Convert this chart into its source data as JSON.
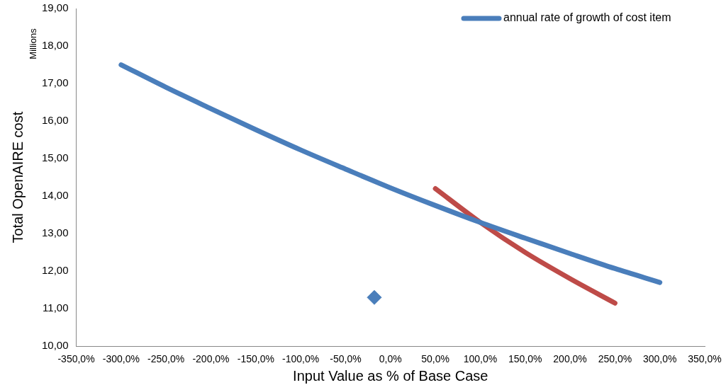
{
  "chart_data": {
    "type": "line",
    "xlabel": "Input Value as % of Base Case",
    "ylabel": "Total OpenAIRE cost",
    "annotations": [
      "Millions"
    ],
    "xlim": [
      -350,
      350
    ],
    "xticks": [
      {
        "value": -350,
        "label": "-350,0%"
      },
      {
        "value": -300,
        "label": "-300,0%"
      },
      {
        "value": -250,
        "label": "-250,0%"
      },
      {
        "value": -200,
        "label": "-200,0%"
      },
      {
        "value": -150,
        "label": "-150,0%"
      },
      {
        "value": -100,
        "label": "-100,0%"
      },
      {
        "value": -50,
        "label": "-50,0%"
      },
      {
        "value": 0,
        "label": "0,0%"
      },
      {
        "value": 50,
        "label": "50,0%"
      },
      {
        "value": 100,
        "label": "100,0%"
      },
      {
        "value": 150,
        "label": "150,0%"
      },
      {
        "value": 200,
        "label": "200,0%"
      },
      {
        "value": 250,
        "label": "250,0%"
      },
      {
        "value": 300,
        "label": "300,0%"
      },
      {
        "value": 350,
        "label": "350,0%"
      }
    ],
    "ylim": [
      10,
      19
    ],
    "yticks": [
      {
        "value": 10,
        "label": "10,00"
      },
      {
        "value": 11,
        "label": "11,00"
      },
      {
        "value": 12,
        "label": "12,00"
      },
      {
        "value": 13,
        "label": "13,00"
      },
      {
        "value": 14,
        "label": "14,00"
      },
      {
        "value": 15,
        "label": "15,00"
      },
      {
        "value": 16,
        "label": "16,00"
      },
      {
        "value": 17,
        "label": "17,00"
      },
      {
        "value": 18,
        "label": "18,00"
      },
      {
        "value": 19,
        "label": "19,00"
      }
    ],
    "grid": false,
    "legend": "top right",
    "marker": "none",
    "line_style": "solid",
    "series": [
      {
        "name": "annual rate of growth of cost item",
        "color": "#4a7ebb",
        "x": [
          -300,
          -250,
          -200,
          -150,
          -100,
          -50,
          0,
          50,
          100,
          150,
          200,
          250,
          300
        ],
        "values": [
          17.5,
          16.9,
          16.33,
          15.77,
          15.23,
          14.72,
          14.22,
          13.75,
          13.3,
          12.88,
          12.47,
          12.07,
          11.7
        ]
      },
      {
        "color": "#be4b48",
        "x": [
          50,
          100,
          150,
          200,
          250
        ],
        "values": [
          14.2,
          13.3,
          12.5,
          11.8,
          11.15
        ]
      },
      {
        "type": "scatter",
        "marker": "diamond",
        "color": "#4a7ebb",
        "x": [
          -18
        ],
        "values": [
          11.3
        ]
      }
    ]
  }
}
